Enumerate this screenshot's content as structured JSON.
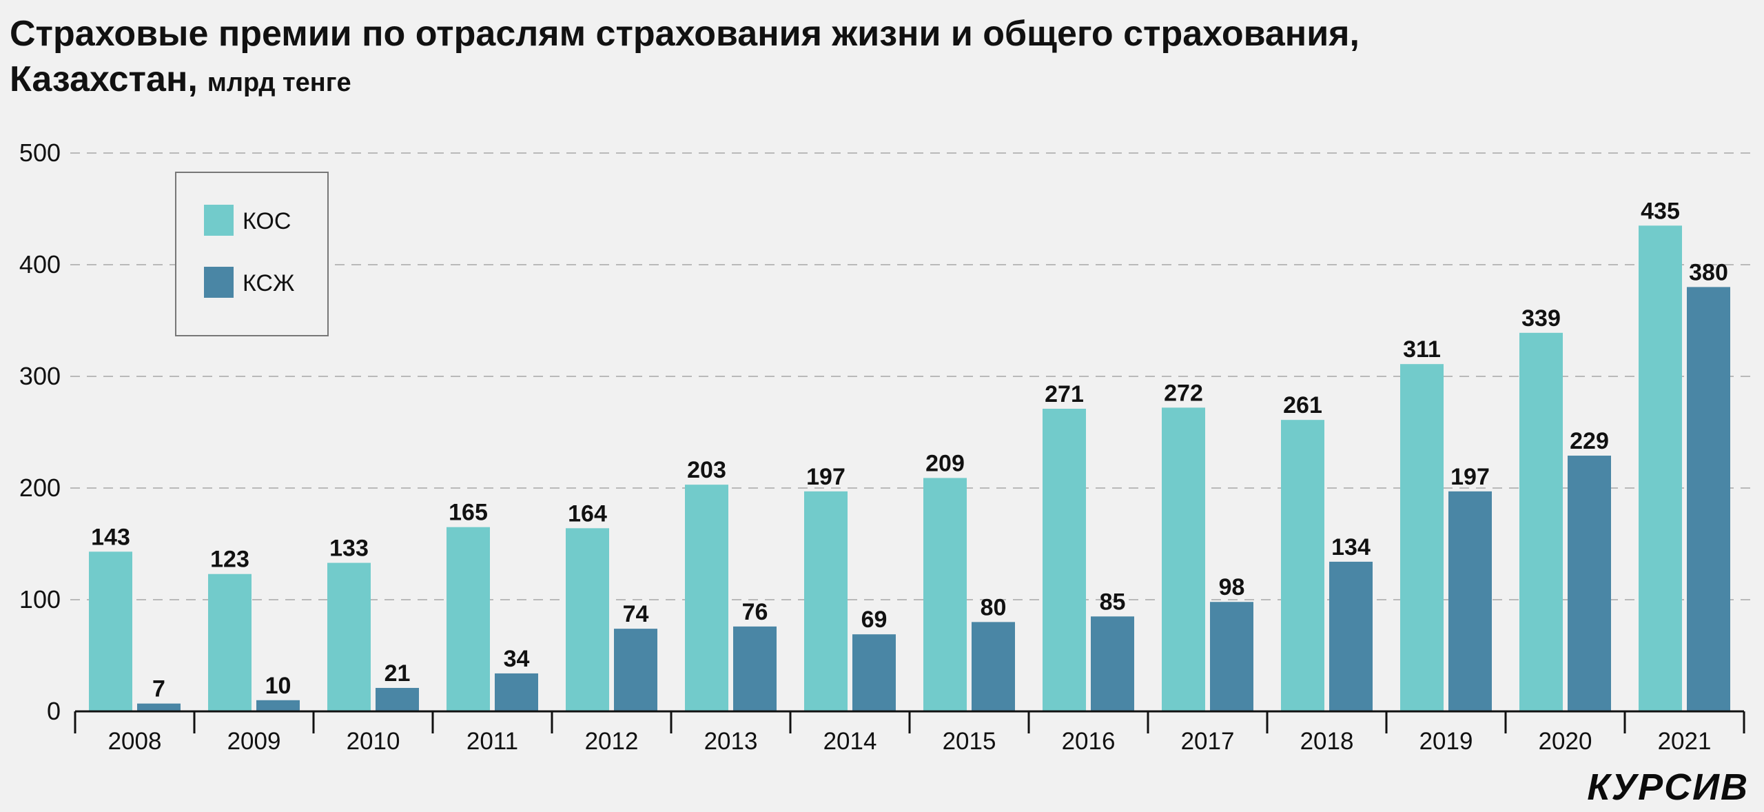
{
  "chart_data": {
    "type": "bar",
    "title": "Страховые премии по отраслям страхования жизни и общего страхования,",
    "title_line2": "Казахстан,",
    "subtitle": "млрд тенге",
    "categories": [
      "2008",
      "2009",
      "2010",
      "2011",
      "2012",
      "2013",
      "2014",
      "2015",
      "2016",
      "2017",
      "2018",
      "2019",
      "2020",
      "2021"
    ],
    "series": [
      {
        "name": "КОС",
        "color": "#72cbcb",
        "values": [
          143,
          123,
          133,
          165,
          164,
          203,
          197,
          209,
          271,
          272,
          261,
          311,
          339,
          435
        ]
      },
      {
        "name": "КСЖ",
        "color": "#4a86a5",
        "values": [
          7,
          10,
          21,
          34,
          74,
          76,
          69,
          80,
          85,
          98,
          134,
          197,
          229,
          380
        ]
      }
    ],
    "yticks": [
      0,
      100,
      200,
      300,
      400,
      500
    ],
    "ylim": [
      0,
      500
    ],
    "xlabel": "",
    "ylabel": "",
    "grid": true,
    "legend_position": "top-left"
  },
  "brand": {
    "logo": "КУРСИВ"
  }
}
